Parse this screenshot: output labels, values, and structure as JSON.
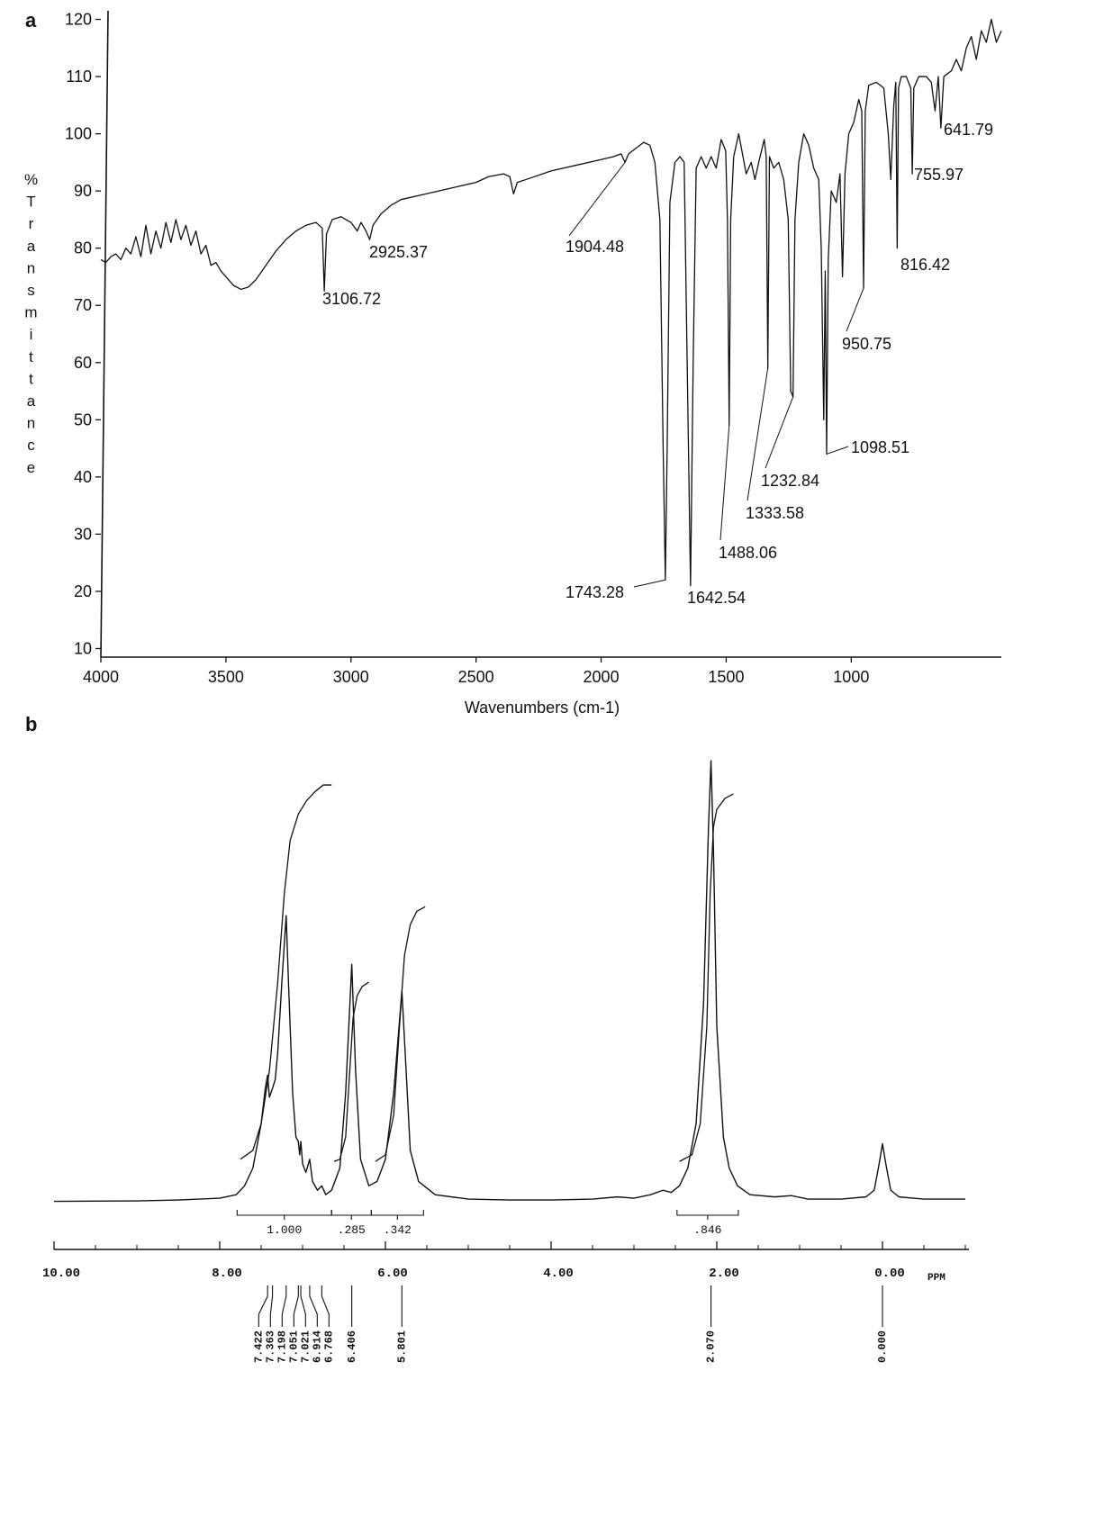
{
  "panel_labels": [
    "a",
    "b"
  ],
  "chart_data": [
    {
      "type": "line",
      "x_label": "Wavenumbers (cm-1)",
      "y_label": "%Transmittance",
      "xlim": [
        4000,
        400
      ],
      "ylim": [
        8.5,
        121.5
      ],
      "xticks": [
        4000,
        3500,
        3000,
        2500,
        2000,
        1500,
        1000
      ],
      "yticks": [
        10,
        20,
        30,
        40,
        50,
        60,
        70,
        80,
        90,
        100,
        110,
        120
      ],
      "color": "#111111",
      "x": [
        4000,
        3980,
        3960,
        3940,
        3920,
        3900,
        3880,
        3860,
        3840,
        3820,
        3800,
        3780,
        3760,
        3740,
        3720,
        3700,
        3680,
        3660,
        3640,
        3620,
        3600,
        3580,
        3560,
        3540,
        3520,
        3500,
        3470,
        3440,
        3410,
        3380,
        3340,
        3300,
        3260,
        3220,
        3180,
        3140,
        3115,
        3106.72,
        3098,
        3075,
        3040,
        3000,
        2975,
        2960,
        2940,
        2925.37,
        2912,
        2880,
        2840,
        2800,
        2700,
        2600,
        2500,
        2450,
        2390,
        2365,
        2350,
        2335,
        2300,
        2200,
        2100,
        2000,
        1950,
        1920,
        1904.48,
        1890,
        1860,
        1830,
        1805,
        1785,
        1765,
        1752,
        1743.28,
        1736,
        1725,
        1705,
        1685,
        1668,
        1656,
        1642.54,
        1632,
        1620,
        1600,
        1580,
        1560,
        1540,
        1520,
        1502,
        1495,
        1488.06,
        1482,
        1470,
        1450,
        1420,
        1400,
        1385,
        1370,
        1348,
        1340,
        1333.58,
        1327,
        1310,
        1290,
        1270,
        1252,
        1242,
        1232.84,
        1225,
        1210,
        1190,
        1170,
        1150,
        1130,
        1120,
        1110,
        1104,
        1098.51,
        1092,
        1080,
        1060,
        1045,
        1035,
        1025,
        1010,
        990,
        970,
        958,
        950.75,
        944,
        930,
        900,
        870,
        852,
        842,
        830,
        822,
        816.42,
        811,
        800,
        780,
        762,
        755.97,
        750,
        730,
        700,
        680,
        665,
        652,
        641.79,
        630,
        600,
        580,
        560,
        540,
        520,
        500,
        480,
        460,
        440,
        420,
        400
      ],
      "values": [
        78,
        77.5,
        78.5,
        79,
        78,
        80,
        79,
        82,
        78.5,
        84,
        79,
        83,
        80,
        84.5,
        81,
        85,
        81.5,
        84,
        80.5,
        83,
        79,
        80.5,
        77,
        77.5,
        76,
        75,
        73.5,
        72.8,
        73.2,
        74.5,
        77,
        79.5,
        81.5,
        83,
        84,
        84.5,
        83.5,
        72.5,
        82.5,
        85,
        85.5,
        84.5,
        83,
        84.5,
        83,
        81.5,
        84,
        86,
        87.5,
        88.5,
        89.5,
        90.5,
        91.5,
        92.5,
        93,
        92.5,
        89.5,
        91.5,
        92,
        93.5,
        94.5,
        95.5,
        96,
        96.5,
        95,
        96.5,
        97.5,
        98.5,
        98,
        95,
        85,
        45,
        22,
        45,
        88,
        95,
        96,
        95,
        60,
        21,
        60,
        94,
        96,
        94,
        96,
        94,
        99,
        97,
        85,
        49,
        85,
        96,
        100,
        93,
        95,
        92,
        95,
        99,
        96,
        59,
        96,
        94,
        95,
        92,
        85,
        55,
        54,
        85,
        95,
        100,
        98,
        94,
        92,
        80,
        50,
        76,
        44,
        78,
        90,
        88,
        93,
        75,
        93,
        100,
        102,
        106,
        104,
        73,
        104,
        108.5,
        109,
        108,
        100,
        92,
        105,
        109,
        80,
        108,
        110,
        110,
        108,
        93,
        108,
        110,
        110,
        109,
        104,
        110,
        101,
        110,
        111,
        113,
        111,
        115,
        117,
        113,
        118,
        116,
        120,
        116,
        118
      ],
      "annotations": [
        {
          "text": "3106.72",
          "x": 3106.72,
          "y": 72.5
        },
        {
          "text": "2925.37",
          "x": 2925.37,
          "y": 81.5
        },
        {
          "text": "1904.48",
          "x": 1904.48,
          "y": 95
        },
        {
          "text": "1743.28",
          "x": 1743.28,
          "y": 22
        },
        {
          "text": "1642.54",
          "x": 1642.54,
          "y": 21
        },
        {
          "text": "1488.06",
          "x": 1488.06,
          "y": 49
        },
        {
          "text": "1333.58",
          "x": 1333.58,
          "y": 59
        },
        {
          "text": "1232.84",
          "x": 1232.84,
          "y": 54
        },
        {
          "text": "1098.51",
          "x": 1098.51,
          "y": 44
        },
        {
          "text": "950.75",
          "x": 950.75,
          "y": 73
        },
        {
          "text": "816.42",
          "x": 816.42,
          "y": 80
        },
        {
          "text": "755.97",
          "x": 755.97,
          "y": 93
        },
        {
          "text": "641.79",
          "x": 641.79,
          "y": 101
        }
      ]
    },
    {
      "type": "line",
      "x_label": "PPM",
      "xlim": [
        10,
        -1
      ],
      "ylim": [
        0,
        100
      ],
      "xticks": [
        {
          "value": 10,
          "label": "10.00"
        },
        {
          "value": 8,
          "label": "8.00"
        },
        {
          "value": 6,
          "label": "6.00"
        },
        {
          "value": 4,
          "label": "4.00"
        },
        {
          "value": 2,
          "label": "2.00"
        },
        {
          "value": 0,
          "label": "0.00"
        }
      ],
      "xminorticks": [
        9.5,
        9,
        8.5,
        7.5,
        7,
        6.5,
        5.5,
        5,
        4.5,
        3.5,
        3,
        2.5,
        1.5,
        1,
        0.5,
        -0.5,
        -1
      ],
      "color": "#111111",
      "x": [
        10.0,
        9.0,
        8.5,
        8.0,
        7.8,
        7.7,
        7.6,
        7.5,
        7.45,
        7.422,
        7.4,
        7.363,
        7.33,
        7.3,
        7.25,
        7.198,
        7.17,
        7.12,
        7.08,
        7.051,
        7.035,
        7.021,
        7.0,
        6.96,
        6.914,
        6.88,
        6.82,
        6.768,
        6.72,
        6.65,
        6.55,
        6.48,
        6.406,
        6.36,
        6.3,
        6.2,
        6.1,
        6.0,
        5.9,
        5.801,
        5.75,
        5.7,
        5.6,
        5.4,
        5.0,
        4.5,
        4.0,
        3.5,
        3.2,
        3.0,
        2.8,
        2.65,
        2.55,
        2.45,
        2.35,
        2.25,
        2.16,
        2.1,
        2.07,
        2.04,
        2.0,
        1.92,
        1.85,
        1.75,
        1.6,
        1.3,
        1.1,
        0.9,
        0.5,
        0.2,
        0.1,
        0.04,
        0.0,
        -0.04,
        -0.1,
        -0.2,
        -0.5,
        -1.0
      ],
      "values": [
        0.5,
        0.6,
        0.8,
        1.2,
        2,
        4,
        8,
        18,
        26,
        29,
        24,
        26,
        28,
        34,
        50,
        65,
        50,
        25,
        15,
        14,
        11,
        14,
        9,
        7,
        10,
        5,
        3,
        4,
        2,
        3,
        8,
        25,
        54,
        30,
        10,
        4,
        5,
        10,
        25,
        48,
        30,
        12,
        5,
        2,
        1,
        0.8,
        0.8,
        1,
        1.5,
        1.2,
        2,
        3,
        2.5,
        4,
        8,
        18,
        45,
        85,
        100,
        80,
        40,
        15,
        8,
        4,
        2,
        1.5,
        1.8,
        1,
        1,
        1.5,
        3,
        9,
        13.5,
        9,
        3,
        1.5,
        1,
        1
      ],
      "integral_curves": [
        {
          "x": [
            7.75,
            7.6,
            7.5,
            7.4,
            7.3,
            7.22,
            7.15,
            7.05,
            6.95,
            6.85,
            6.75,
            6.65
          ],
          "values": [
            10,
            12,
            18,
            30,
            50,
            70,
            82,
            88,
            91,
            93,
            94.5,
            94.5
          ]
        },
        {
          "x": [
            6.62,
            6.55,
            6.48,
            6.43,
            6.39,
            6.34,
            6.28,
            6.2
          ],
          "values": [
            9.5,
            10,
            15,
            30,
            42,
            47,
            49,
            50
          ]
        },
        {
          "x": [
            6.12,
            6.0,
            5.9,
            5.83,
            5.77,
            5.7,
            5.62,
            5.52
          ],
          "values": [
            9.5,
            11,
            20,
            40,
            56,
            63,
            66,
            67
          ]
        },
        {
          "x": [
            2.45,
            2.3,
            2.2,
            2.12,
            2.08,
            2.04,
            2.0,
            1.9,
            1.8
          ],
          "values": [
            9.5,
            11,
            18,
            40,
            70,
            85,
            89,
            91.5,
            92.5
          ]
        }
      ],
      "integration_values": [
        1.0,
        0.285,
        0.342,
        0.846
      ],
      "integration_labels": [
        "1.000",
        ".285",
        ".342",
        ".846"
      ],
      "integration_ranges": [
        [
          7.79,
          6.65
        ],
        [
          6.65,
          6.17
        ],
        [
          6.17,
          5.54
        ],
        [
          2.48,
          1.74
        ]
      ],
      "peaks": [
        7.422,
        7.363,
        7.198,
        7.051,
        7.021,
        6.914,
        6.768,
        6.406,
        5.801,
        2.07,
        0.0
      ],
      "peak_labels": [
        "7.422",
        "7.363",
        "7.198",
        "7.051",
        "7.021",
        "6.914",
        "6.768",
        "6.406",
        "5.801",
        "2.070",
        "0.000"
      ]
    }
  ]
}
